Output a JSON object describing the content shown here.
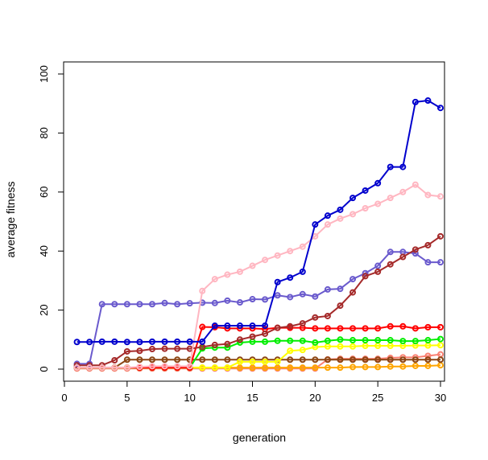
{
  "chart_data": {
    "type": "line",
    "title": "",
    "xlabel": "generation",
    "ylabel": "average fitness",
    "xlim": [
      0,
      31
    ],
    "ylim": [
      0,
      100
    ],
    "x_ticks": [
      0,
      5,
      10,
      15,
      20,
      25,
      30
    ],
    "y_ticks": [
      0,
      20,
      40,
      60,
      80,
      100
    ],
    "grid": false,
    "legend": "none",
    "x": [
      1,
      2,
      3,
      4,
      5,
      6,
      7,
      8,
      9,
      10,
      11,
      12,
      13,
      14,
      15,
      16,
      17,
      18,
      19,
      20,
      21,
      22,
      23,
      24,
      25,
      26,
      27,
      28,
      29,
      30
    ],
    "series": [
      {
        "color": "#0000cd",
        "marker": "circle-open",
        "values": [
          9.2,
          9.2,
          9.3,
          9.3,
          9.2,
          9.2,
          9.3,
          9.3,
          9.3,
          9.3,
          9.3,
          14.7,
          14.7,
          14.7,
          14.7,
          14.7,
          29.5,
          31,
          33,
          49,
          52,
          54,
          58,
          60.5,
          63,
          68.5,
          68.5,
          90.5,
          91,
          88.5
        ]
      },
      {
        "color": "#ffb6c1",
        "marker": "circle-open",
        "values": [
          0.5,
          0.5,
          0.5,
          0.5,
          0.5,
          0.8,
          1.0,
          1.0,
          1.0,
          1.0,
          26.5,
          30.5,
          32,
          33,
          35,
          37,
          38.5,
          40,
          41.5,
          45,
          49,
          51,
          52.5,
          54.5,
          56,
          58,
          60,
          62.5,
          59,
          58.5
        ]
      },
      {
        "color": "#a52a2a",
        "marker": "circle-open",
        "values": [
          1.3,
          1.3,
          1.3,
          3.0,
          6.0,
          6.2,
          6.8,
          6.9,
          6.9,
          6.9,
          7.5,
          8.2,
          8.5,
          10,
          11,
          12,
          14,
          14.5,
          15.5,
          17.5,
          18,
          21.5,
          26,
          31.5,
          33,
          35.5,
          38,
          40.5,
          42,
          45
        ]
      },
      {
        "color": "#6a5acd",
        "marker": "circle-open",
        "values": [
          1.8,
          1.8,
          22,
          22,
          22,
          22,
          22,
          22.4,
          22,
          22.3,
          22.5,
          22.4,
          23.2,
          22.6,
          23.7,
          23.6,
          25,
          24.4,
          25.4,
          24.6,
          27,
          27.2,
          30.5,
          32.5,
          35,
          39.7,
          39.7,
          39.2,
          36.2,
          36.2
        ]
      },
      {
        "color": "#ff0000",
        "marker": "circle-open",
        "values": [
          0.5,
          0.5,
          0.5,
          0.5,
          0.5,
          0.5,
          0.5,
          0.5,
          0.5,
          0.5,
          14.3,
          14.2,
          13.8,
          13.8,
          13.8,
          13.6,
          14.0,
          14.0,
          14.0,
          13.8,
          13.8,
          13.8,
          13.8,
          13.8,
          13.8,
          14.5,
          14.5,
          13.8,
          14.2,
          14.2
        ]
      },
      {
        "color": "#00ee00",
        "marker": "circle-open",
        "values": [
          0.5,
          0.5,
          0.5,
          0.5,
          0.5,
          0.5,
          0.5,
          0.5,
          0.5,
          0.5,
          7.0,
          7.3,
          7.3,
          9.0,
          9.3,
          9.3,
          9.6,
          9.6,
          9.6,
          9.0,
          9.6,
          10.0,
          9.8,
          9.8,
          9.8,
          9.8,
          9.5,
          9.5,
          9.8,
          10.2
        ]
      },
      {
        "color": "#ffff00",
        "marker": "circle-open",
        "values": [
          0.5,
          0.5,
          0.5,
          0.5,
          0.5,
          0.5,
          0.5,
          0.5,
          0.5,
          0.5,
          0.5,
          0.5,
          0.5,
          2.5,
          2.5,
          2.5,
          2.5,
          6.2,
          6.5,
          7.5,
          7.7,
          7.7,
          7.7,
          7.9,
          7.9,
          7.9,
          7.9,
          8.0,
          8.0,
          8.1
        ]
      },
      {
        "color": "#8b4513",
        "marker": "circle-open",
        "values": [
          0.5,
          0.5,
          0.5,
          0.5,
          3.2,
          3.2,
          3.2,
          3.2,
          3.2,
          3.2,
          3.2,
          3.2,
          3.2,
          3.2,
          3.2,
          3.2,
          3.2,
          3.2,
          3.2,
          3.2,
          3.2,
          3.2,
          3.2,
          3.2,
          3.2,
          3.2,
          3.2,
          3.2,
          3.2,
          3.2
        ]
      },
      {
        "color": "#ffa500",
        "marker": "circle-open",
        "values": [
          0.5,
          0.5,
          0.5,
          0.5,
          0.5,
          0.5,
          0.5,
          0.5,
          0.5,
          0.5,
          0.5,
          0.5,
          0.5,
          0.5,
          0.5,
          0.5,
          0.5,
          0.5,
          0.5,
          0.5,
          0.5,
          0.5,
          0.7,
          0.7,
          0.7,
          0.9,
          0.9,
          1.1,
          1.1,
          1.3
        ]
      },
      {
        "color": "#fa8072",
        "marker": "circle-open",
        "values": [
          0.2,
          0.2,
          0.2,
          0.2,
          0.2,
          0.2,
          0.2,
          0.2,
          0.2,
          0.2,
          0.2,
          0.2,
          0.2,
          0.2,
          0.2,
          0.2,
          0.2,
          0.2,
          0.2,
          0.2,
          3.3,
          3.5,
          3.5,
          3.5,
          3.5,
          3.8,
          4.0,
          4.0,
          4.5,
          5.0
        ]
      }
    ]
  }
}
